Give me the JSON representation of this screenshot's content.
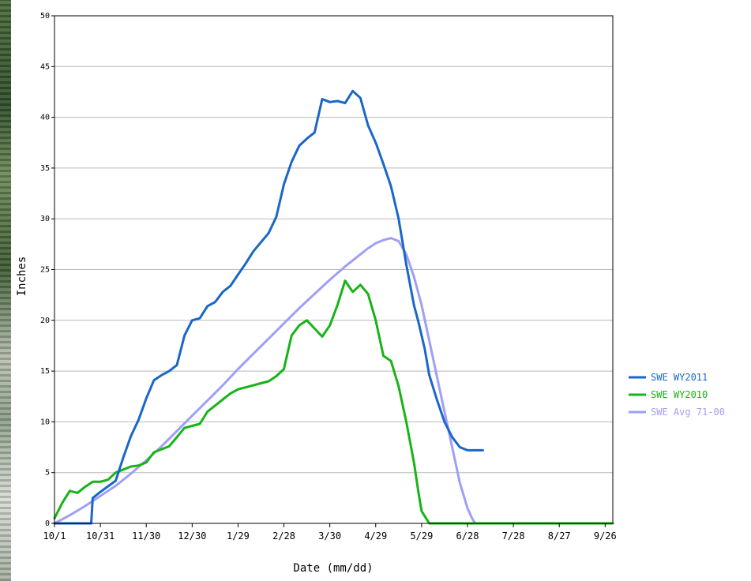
{
  "chart_data": {
    "type": "line",
    "title": "",
    "xlabel": "Date (mm/dd)",
    "ylabel": "Inches",
    "x_tick_labels": [
      "10/1",
      "10/31",
      "11/30",
      "12/30",
      "1/29",
      "2/28",
      "3/30",
      "4/29",
      "5/29",
      "6/28",
      "7/28",
      "8/27",
      "9/26"
    ],
    "x_tick_days": [
      0,
      30,
      60,
      90,
      120,
      150,
      180,
      210,
      240,
      270,
      300,
      330,
      360
    ],
    "xlim_days": [
      0,
      365
    ],
    "y_tick_labels": [
      "0",
      "5",
      "10",
      "15",
      "20",
      "25",
      "30",
      "35",
      "40",
      "45",
      "50"
    ],
    "ylim": [
      0,
      50
    ],
    "grid": "horizontal",
    "legend_position": "right",
    "series": [
      {
        "name": "SWE WY2011",
        "color": "#1a66c9",
        "x": [
          0,
          24,
          25,
          30,
          40,
          45,
          50,
          55,
          60,
          65,
          70,
          75,
          80,
          85,
          90,
          95,
          100,
          105,
          110,
          115,
          120,
          125,
          130,
          135,
          140,
          145,
          150,
          155,
          160,
          165,
          170,
          175,
          180,
          185,
          190,
          195,
          200,
          205,
          210,
          215,
          220,
          225,
          230,
          235,
          238,
          242,
          245,
          250,
          255,
          260,
          265,
          270,
          275,
          280
        ],
        "y": [
          0,
          0,
          2.5,
          3.1,
          4.2,
          6.5,
          8.6,
          10.2,
          12.3,
          14.1,
          14.6,
          15,
          15.6,
          18.5,
          20,
          20.2,
          21.4,
          21.8,
          22.8,
          23.4,
          24.5,
          25.6,
          26.8,
          27.7,
          28.6,
          30.2,
          33.4,
          35.6,
          37.2,
          37.9,
          38.5,
          41.8,
          41.5,
          41.6,
          41.4,
          42.6,
          41.9,
          39.2,
          37.5,
          35.4,
          33.2,
          30,
          25.5,
          21.5,
          19.8,
          17.2,
          14.6,
          12.2,
          10,
          8.5,
          7.5,
          7.2,
          7.2,
          7.2
        ]
      },
      {
        "name": "SWE WY2010",
        "color": "#17b317",
        "x": [
          0,
          5,
          10,
          15,
          20,
          25,
          30,
          35,
          40,
          45,
          50,
          55,
          60,
          65,
          70,
          75,
          80,
          85,
          90,
          95,
          100,
          105,
          110,
          115,
          120,
          125,
          130,
          135,
          140,
          145,
          150,
          155,
          160,
          165,
          170,
          175,
          180,
          185,
          190,
          195,
          200,
          205,
          210,
          215,
          220,
          225,
          230,
          235,
          238,
          240,
          245,
          250,
          255,
          260,
          262,
          265,
          268,
          270,
          272,
          275,
          365
        ],
        "y": [
          0.5,
          2,
          3.2,
          3,
          3.6,
          4.1,
          4.1,
          4.3,
          5,
          5.3,
          5.6,
          5.7,
          6,
          7,
          7.3,
          7.6,
          8.5,
          9.4,
          9.6,
          9.8,
          11,
          11.6,
          12.2,
          12.8,
          13.2,
          13.4,
          13.6,
          13.8,
          14,
          14.5,
          15.2,
          18.5,
          19.5,
          20,
          19.2,
          18.4,
          19.5,
          21.5,
          23.9,
          22.8,
          23.5,
          22.6,
          20,
          16.5,
          16,
          13.5,
          10,
          6,
          3,
          1.2,
          0,
          0,
          0,
          0,
          0,
          0,
          0,
          0,
          0,
          0,
          0
        ]
      },
      {
        "name": "SWE Avg 71-00",
        "color": "#9f9ff7",
        "x": [
          0,
          10,
          20,
          30,
          40,
          50,
          60,
          70,
          80,
          90,
          100,
          110,
          120,
          130,
          140,
          150,
          160,
          170,
          180,
          190,
          200,
          205,
          210,
          215,
          220,
          225,
          230,
          235,
          240,
          245,
          250,
          255,
          260,
          265,
          270,
          273,
          275,
          277
        ],
        "y": [
          0,
          0.8,
          1.7,
          2.7,
          3.7,
          4.9,
          6.2,
          7.6,
          9.1,
          10.6,
          12.1,
          13.6,
          15.2,
          16.7,
          18.2,
          19.7,
          21.2,
          22.6,
          24,
          25.3,
          26.5,
          27.1,
          27.6,
          27.9,
          28.1,
          27.8,
          26.5,
          24.3,
          21.5,
          18,
          14.5,
          11,
          7.5,
          4,
          1.5,
          0.5,
          0,
          0
        ]
      }
    ]
  }
}
